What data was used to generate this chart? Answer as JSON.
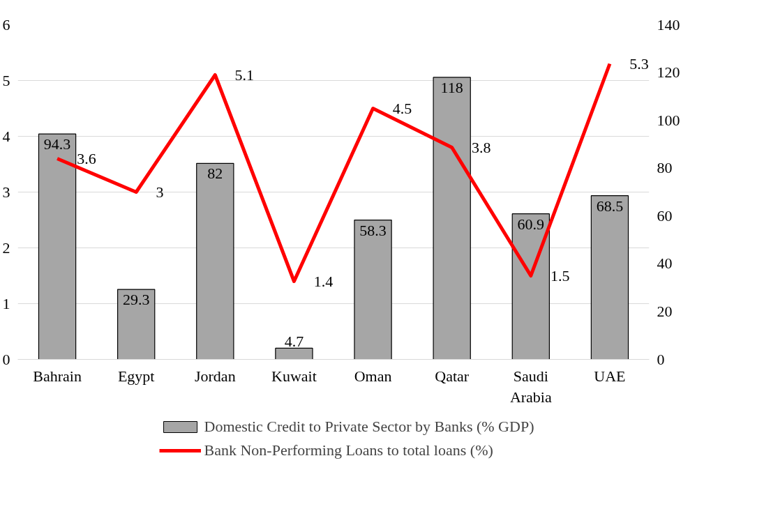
{
  "chart_data": {
    "type": "bar",
    "categories": [
      "Bahrain",
      "Egypt",
      "Jordan",
      "Kuwait",
      "Oman",
      "Qatar",
      "Saudi Arabia",
      "UAE"
    ],
    "series": [
      {
        "name": "Domestic Credit to Private Sector by Banks (% GDP)",
        "axis": "y2",
        "color": "#a6a6a6",
        "values": [
          94.3,
          29.3,
          82,
          4.7,
          58.3,
          118,
          60.9,
          68.5
        ]
      },
      {
        "name": "Bank Non-Performing Loans to total loans (%)",
        "type": "line",
        "axis": "y",
        "color": "#ff0000",
        "values": [
          3.6,
          3,
          5.1,
          1.4,
          4.5,
          3.8,
          1.5,
          5.3
        ]
      }
    ],
    "ylim": [
      0,
      6
    ],
    "yticks": [
      0,
      1,
      2,
      3,
      4,
      5,
      6
    ],
    "y2lim": [
      0,
      140
    ],
    "y2ticks": [
      0,
      20,
      40,
      60,
      80,
      100,
      120,
      140
    ],
    "grid": "y",
    "legend": "bottom",
    "data_labels": true,
    "marker": "none",
    "line_style": "solid"
  }
}
